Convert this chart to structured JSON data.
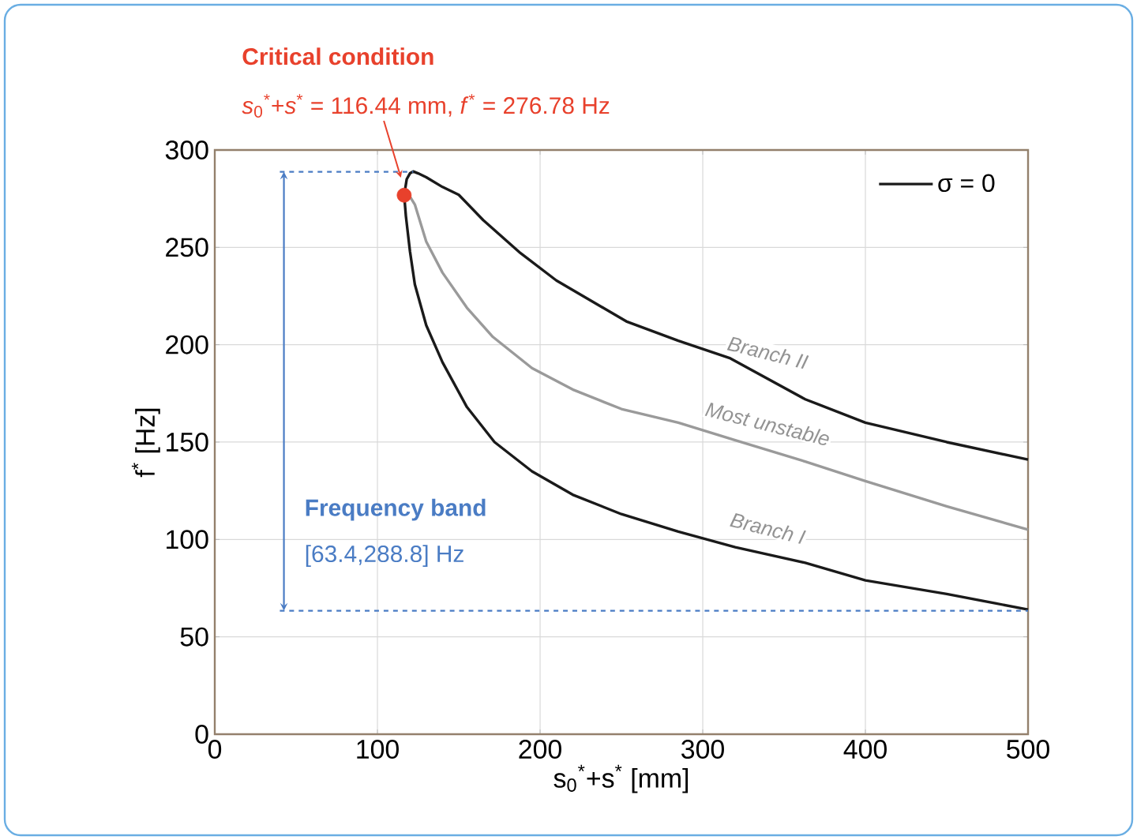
{
  "chart_data": {
    "type": "line",
    "xlabel": "s$_{0}$$^{*}$+s$^{*}$ [mm]",
    "ylabel": "f$^{*}$ [Hz]",
    "xlim": [
      0,
      500
    ],
    "ylim": [
      0,
      300
    ],
    "xticks": [
      0,
      100,
      200,
      300,
      400,
      500
    ],
    "yticks": [
      0,
      50,
      100,
      150,
      200,
      250,
      300
    ],
    "grid": true,
    "legend": "top right",
    "line_style": "solid",
    "series": [
      {
        "name": "σ = 0",
        "color": "#1a1a1a",
        "x": [
          116.44,
          118,
          120,
          122,
          125,
          130,
          140,
          150,
          165,
          188,
          210,
          253,
          285,
          317,
          363,
          400,
          450,
          500
        ],
        "values": [
          276.78,
          285,
          288,
          289,
          288,
          286,
          281,
          277,
          264,
          247,
          233,
          212,
          202,
          193,
          172,
          160,
          150,
          141
        ]
      },
      {
        "color": "#9a9a9a",
        "x": [
          116.44,
          120,
          123,
          130,
          140,
          155,
          171,
          195,
          220,
          250,
          285,
          320,
          363,
          400,
          450,
          500
        ],
        "values": [
          276.78,
          276,
          272,
          253,
          237,
          219,
          204,
          188,
          177,
          167,
          160,
          151,
          140,
          130,
          117,
          105
        ]
      },
      {
        "color": "#1a1a1a",
        "x": [
          116.44,
          117.5,
          120,
          123,
          130,
          140,
          155,
          172,
          195,
          220,
          250,
          285,
          320,
          363,
          400,
          450,
          500
        ],
        "values": [
          276.78,
          266,
          248,
          231,
          210,
          191,
          168,
          150,
          135,
          123,
          113,
          104,
          96,
          88,
          79,
          72,
          64
        ]
      },
      {
        "type": "scatter",
        "color": "#e8412c",
        "x": [
          116.44
        ],
        "values": [
          276.78
        ]
      }
    ],
    "ref_lines": [
      {
        "axis": "y",
        "value": 288.8,
        "color": "#4a7cc4",
        "line_style": "dashed"
      },
      {
        "axis": "y",
        "value": 63.4,
        "color": "#4a7cc4",
        "line_style": "dashed"
      }
    ],
    "annotations": [
      "**Critical condition**",
      "*s*$_{0}$$^{*}$+*s*$^{*}$ = 116.44 mm, *f*$^{*}$ = 276.78 Hz",
      "*Branch II*",
      "*Most unstable*",
      "*Branch I*",
      "**Frequency band**",
      "[63.4,288.8] Hz"
    ]
  }
}
